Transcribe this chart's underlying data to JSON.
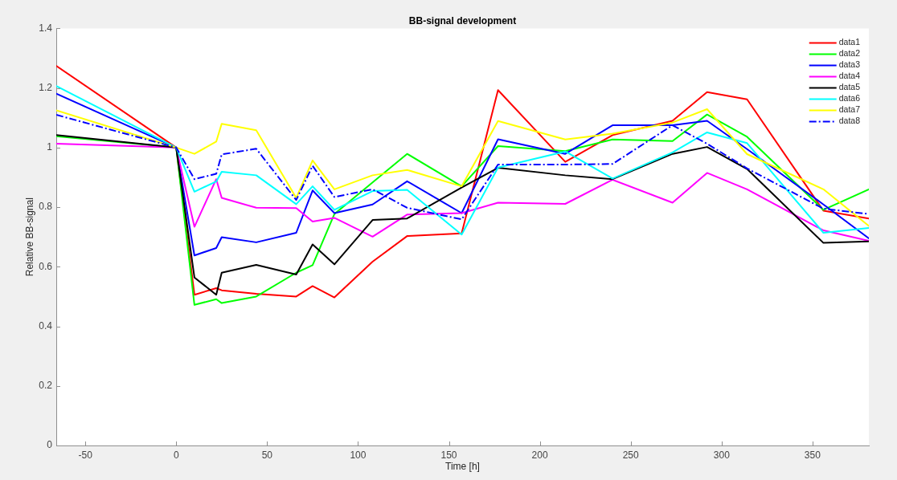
{
  "chart_data": {
    "type": "line",
    "title": "BB-signal development",
    "xlabel": "Time [h]",
    "ylabel": "Relative BB-signal",
    "x": [
      -66,
      0,
      10,
      22,
      25,
      44,
      66,
      75,
      87,
      108,
      127,
      157,
      177,
      214,
      240,
      273,
      292,
      314,
      356,
      381
    ],
    "series": [
      {
        "name": "data1",
        "color": "#ff0000",
        "values": [
          1.274,
          1,
          0.506,
          0.528,
          0.521,
          0.509,
          0.5,
          0.535,
          0.497,
          0.617,
          0.703,
          0.712,
          1.193,
          0.952,
          1.042,
          1.09,
          1.186,
          1.162,
          0.788,
          0.762
        ]
      },
      {
        "name": "data2",
        "color": "#00ff00",
        "values": [
          1.038,
          1,
          0.472,
          0.491,
          0.478,
          0.5,
          0.58,
          0.605,
          0.777,
          0.883,
          0.979,
          0.87,
          1.005,
          0.988,
          1.027,
          1.022,
          1.111,
          1.036,
          0.791,
          0.86
        ]
      },
      {
        "name": "data3",
        "color": "#0000ff",
        "values": [
          1.181,
          1,
          0.638,
          0.663,
          0.699,
          0.682,
          0.714,
          0.856,
          0.78,
          0.809,
          0.887,
          0.78,
          1.028,
          0.979,
          1.075,
          1.075,
          1.09,
          0.995,
          0.809,
          0.695
        ]
      },
      {
        "name": "data4",
        "color": "#ff00ff",
        "values": [
          1.013,
          1,
          0.734,
          0.894,
          0.831,
          0.798,
          0.797,
          0.752,
          0.764,
          0.701,
          0.775,
          0.78,
          0.815,
          0.811,
          0.892,
          0.815,
          0.915,
          0.86,
          0.722,
          0.687
        ]
      },
      {
        "name": "data5",
        "color": "#000000",
        "values": [
          1.042,
          1,
          0.564,
          0.506,
          0.58,
          0.606,
          0.574,
          0.675,
          0.608,
          0.757,
          0.762,
          0.866,
          0.932,
          0.907,
          0.894,
          0.979,
          1.002,
          0.928,
          0.68,
          0.685
        ]
      },
      {
        "name": "data6",
        "color": "#00ffff",
        "values": [
          1.207,
          1,
          0.852,
          0.886,
          0.919,
          0.907,
          0.81,
          0.87,
          0.791,
          0.854,
          0.858,
          0.708,
          0.933,
          0.987,
          0.896,
          0.984,
          1.051,
          1.015,
          0.714,
          0.73
        ]
      },
      {
        "name": "data7",
        "color": "#ffff00",
        "values": [
          1.125,
          1,
          0.979,
          1.02,
          1.08,
          1.058,
          0.831,
          0.957,
          0.86,
          0.907,
          0.925,
          0.87,
          1.089,
          1.027,
          1.047,
          1.084,
          1.129,
          0.978,
          0.86,
          0.737
        ]
      },
      {
        "name": "data8",
        "color": "#0000ff",
        "line_style": "dashed",
        "values": [
          1.11,
          1,
          0.894,
          0.912,
          0.977,
          0.996,
          0.824,
          0.939,
          0.834,
          0.86,
          0.798,
          0.759,
          0.943,
          0.943,
          0.945,
          1.075,
          1.013,
          0.93,
          0.795,
          0.777
        ]
      }
    ],
    "xlim": [
      -66,
      381
    ],
    "xticks": [
      -50,
      0,
      50,
      100,
      150,
      200,
      250,
      300,
      350
    ],
    "ylim": [
      0,
      1.4
    ],
    "yticks": [
      0,
      0.2,
      0.4,
      0.6,
      0.8,
      1,
      1.2,
      1.4
    ],
    "legend": "top right",
    "line_style": "solid"
  }
}
